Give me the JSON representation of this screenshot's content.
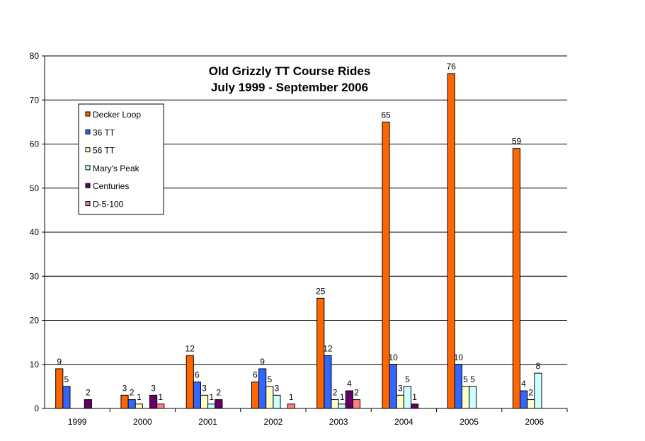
{
  "chart_data": {
    "type": "bar",
    "title_lines": [
      "Old Grizzly TT Course Rides",
      "July 1999 - September 2006"
    ],
    "xlabel": "",
    "ylabel": "",
    "categories": [
      "1999",
      "2000",
      "2001",
      "2002",
      "2003",
      "2004",
      "2005",
      "2006"
    ],
    "ylim": [
      0,
      80
    ],
    "yticks": [
      0,
      10,
      20,
      30,
      40,
      50,
      60,
      70,
      80
    ],
    "grid": true,
    "legend_position": "top-left",
    "series": [
      {
        "name": "Decker Loop",
        "color": "#FF6600",
        "values": [
          9,
          3,
          12,
          6,
          25,
          65,
          76,
          59
        ]
      },
      {
        "name": "36 TT",
        "color": "#3366FF",
        "values": [
          5,
          2,
          6,
          9,
          12,
          10,
          10,
          4
        ]
      },
      {
        "name": "56 TT",
        "color": "#FFFFCC",
        "values": [
          null,
          1,
          3,
          5,
          2,
          3,
          5,
          2
        ]
      },
      {
        "name": "Mary's Peak",
        "color": "#CCFFFF",
        "values": [
          null,
          null,
          1,
          3,
          1,
          5,
          5,
          8
        ]
      },
      {
        "name": "Centuries",
        "color": "#660066",
        "values": [
          2,
          3,
          2,
          null,
          4,
          1,
          null,
          null
        ]
      },
      {
        "name": "D-5-100",
        "color": "#FF8080",
        "values": [
          null,
          1,
          null,
          1,
          2,
          null,
          null,
          null
        ]
      }
    ]
  }
}
